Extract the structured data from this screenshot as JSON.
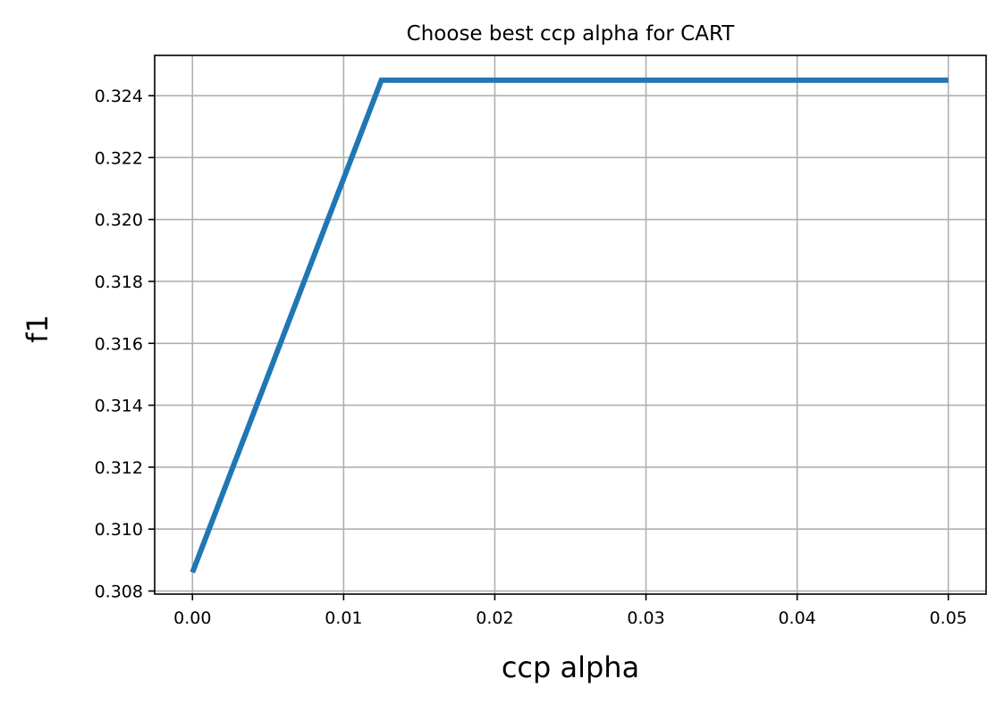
{
  "chart_data": {
    "type": "line",
    "title": "Choose best ccp alpha for CART",
    "xlabel": "ccp alpha",
    "ylabel": "f1",
    "xlim": [
      -0.0025,
      0.0525
    ],
    "ylim": [
      0.3079,
      0.3253
    ],
    "grid": true,
    "legend": "none",
    "x_ticks": [
      0.0,
      0.01,
      0.02,
      0.03,
      0.04,
      0.05
    ],
    "x_tick_labels": [
      "0.00",
      "0.01",
      "0.02",
      "0.03",
      "0.04",
      "0.05"
    ],
    "y_ticks": [
      0.308,
      0.31,
      0.312,
      0.314,
      0.316,
      0.318,
      0.32,
      0.322,
      0.324
    ],
    "y_tick_labels": [
      "0.308",
      "0.310",
      "0.312",
      "0.314",
      "0.316",
      "0.318",
      "0.320",
      "0.322",
      "0.324"
    ],
    "series": [
      {
        "color": "#1f77b4",
        "x": [
          0.0,
          0.0125,
          0.05
        ],
        "y": [
          0.3086,
          0.3245,
          0.3245
        ]
      }
    ]
  }
}
